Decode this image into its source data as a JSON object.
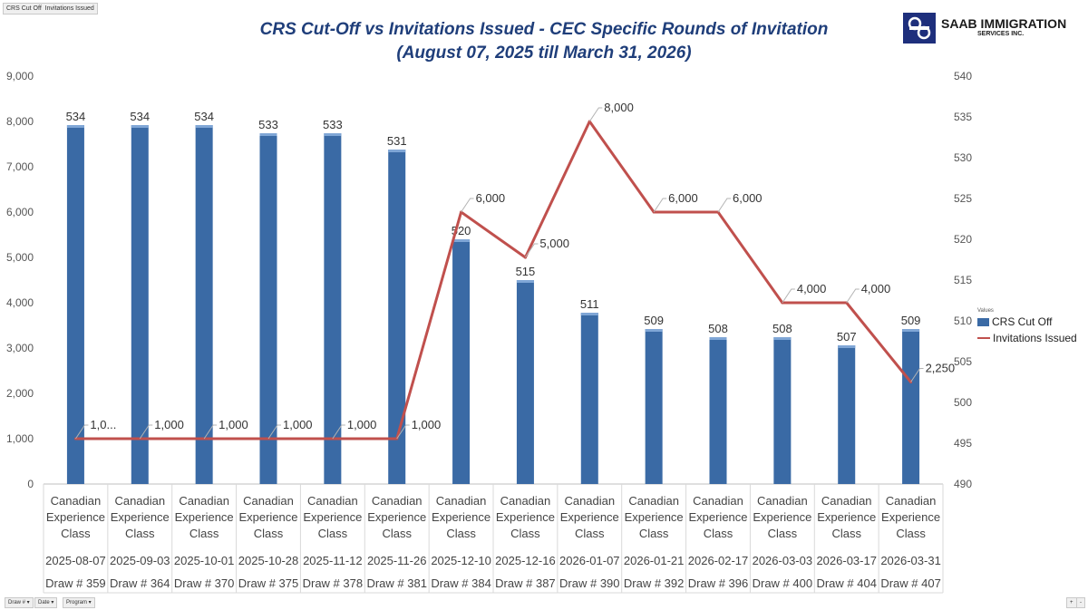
{
  "filter_tabs": [
    "CRS Cut Off",
    "Invitations Issued"
  ],
  "header": {
    "title_line1": "CRS Cut-Off vs Invitations Issued - CEC Specific Rounds of Invitation",
    "title_line2": "(August 07, 2025 till March 31, 2026)"
  },
  "logo": {
    "name": "SAAB IMMIGRATION",
    "sub": "SERVICES INC.",
    "color": "#1e2f7c"
  },
  "legend": {
    "caption": "Values",
    "items": [
      {
        "label": "CRS Cut Off",
        "kind": "bar"
      },
      {
        "label": "Invitations Issued",
        "kind": "line"
      }
    ]
  },
  "bottom_filters": [
    "Draw #",
    "Date",
    "Program"
  ],
  "corner_controls": [
    "+",
    "-"
  ],
  "chart_data": {
    "type": "bar",
    "title": "CRS Cut-Off vs Invitations Issued - CEC Specific Rounds of Invitation",
    "subtitle": "(August 07, 2025 till March 31, 2026)",
    "bar_color": "#3a6aa5",
    "line_color": "#c0504d",
    "categories": [
      {
        "program": [
          "Canadian",
          "Experience",
          "Class"
        ],
        "date": "2025-08-07",
        "draw": "Draw # 359"
      },
      {
        "program": [
          "Canadian",
          "Experience",
          "Class"
        ],
        "date": "2025-09-03",
        "draw": "Draw # 364"
      },
      {
        "program": [
          "Canadian",
          "Experience",
          "Class"
        ],
        "date": "2025-10-01",
        "draw": "Draw # 370"
      },
      {
        "program": [
          "Canadian",
          "Experience",
          "Class"
        ],
        "date": "2025-10-28",
        "draw": "Draw # 375"
      },
      {
        "program": [
          "Canadian",
          "Experience",
          "Class"
        ],
        "date": "2025-11-12",
        "draw": "Draw # 378"
      },
      {
        "program": [
          "Canadian",
          "Experience",
          "Class"
        ],
        "date": "2025-11-26",
        "draw": "Draw # 381"
      },
      {
        "program": [
          "Canadian",
          "Experience",
          "Class"
        ],
        "date": "2025-12-10",
        "draw": "Draw # 384"
      },
      {
        "program": [
          "Canadian",
          "Experience",
          "Class"
        ],
        "date": "2025-12-16",
        "draw": "Draw # 387"
      },
      {
        "program": [
          "Canadian",
          "Experience",
          "Class"
        ],
        "date": "2026-01-07",
        "draw": "Draw # 390"
      },
      {
        "program": [
          "Canadian",
          "Experience",
          "Class"
        ],
        "date": "2026-01-21",
        "draw": "Draw # 392"
      },
      {
        "program": [
          "Canadian",
          "Experience",
          "Class"
        ],
        "date": "2026-02-17",
        "draw": "Draw # 396"
      },
      {
        "program": [
          "Canadian",
          "Experience",
          "Class"
        ],
        "date": "2026-03-03",
        "draw": "Draw # 400"
      },
      {
        "program": [
          "Canadian",
          "Experience",
          "Class"
        ],
        "date": "2026-03-17",
        "draw": "Draw # 404"
      },
      {
        "program": [
          "Canadian",
          "Experience",
          "Class"
        ],
        "date": "2026-03-31",
        "draw": "Draw # 407"
      }
    ],
    "series": [
      {
        "name": "CRS Cut Off",
        "kind": "bar",
        "axis": "right",
        "values": [
          534,
          534,
          534,
          533,
          533,
          531,
          520,
          515,
          511,
          509,
          508,
          508,
          507,
          509
        ],
        "labels": [
          "534",
          "534",
          "534",
          "533",
          "533",
          "531",
          "520",
          "515",
          "511",
          "509",
          "508",
          "508",
          "507",
          "509"
        ]
      },
      {
        "name": "Invitations Issued",
        "kind": "line",
        "axis": "left",
        "values": [
          1000,
          1000,
          1000,
          1000,
          1000,
          1000,
          6000,
          5000,
          8000,
          6000,
          6000,
          4000,
          4000,
          2250
        ],
        "labels": [
          "1,0...",
          "1,000",
          "1,000",
          "1,000",
          "1,000",
          "1,000",
          "6,000",
          "5,000",
          "8,000",
          "6,000",
          "6,000",
          "4,000",
          "4,000",
          "2,250"
        ]
      }
    ],
    "y_left": {
      "min": 0,
      "max": 9000,
      "step": 1000,
      "ticks": [
        "0",
        "1,000",
        "2,000",
        "3,000",
        "4,000",
        "5,000",
        "6,000",
        "7,000",
        "8,000",
        "9,000"
      ]
    },
    "y_right": {
      "min": 490,
      "max": 540,
      "step": 5,
      "ticks": [
        "490",
        "495",
        "500",
        "505",
        "510",
        "515",
        "520",
        "525",
        "530",
        "535",
        "540"
      ]
    },
    "grid": false,
    "legend_position": "right"
  }
}
